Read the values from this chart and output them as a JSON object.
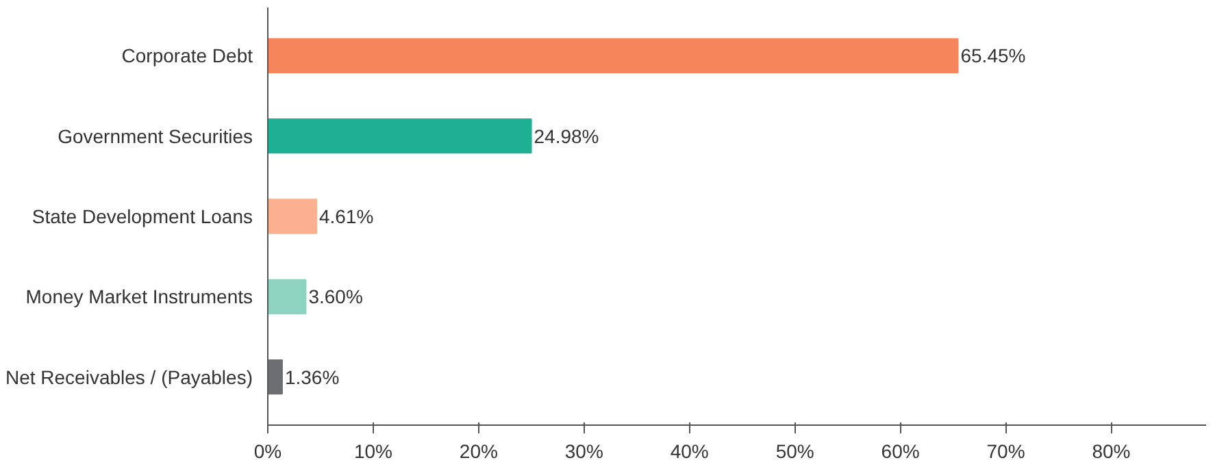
{
  "chart_data": {
    "type": "bar",
    "orientation": "horizontal",
    "categories": [
      "Corporate Debt",
      "Government Securities",
      "State Development Loans",
      "Money Market Instruments",
      "Net Receivables / (Payables)"
    ],
    "values": [
      65.45,
      24.98,
      4.61,
      3.6,
      1.36
    ],
    "colors": [
      "#f7865c",
      "#1eb093",
      "#fbb08f",
      "#8dd3bf",
      "#6d6e71"
    ],
    "value_labels": [
      "65.45%",
      "24.98%",
      "4.61%",
      "3.60%",
      "1.36%"
    ],
    "xlim": [
      0,
      89
    ],
    "xticks": [
      {
        "value": 0,
        "label": "0%"
      },
      {
        "value": 10,
        "label": "10%"
      },
      {
        "value": 20,
        "label": "20%"
      },
      {
        "value": 30,
        "label": "30%"
      },
      {
        "value": 40,
        "label": "40%"
      },
      {
        "value": 50,
        "label": "50%"
      },
      {
        "value": 60,
        "label": "60%"
      },
      {
        "value": 70,
        "label": "70%"
      },
      {
        "value": 80,
        "label": "80%"
      }
    ],
    "grid": false
  }
}
